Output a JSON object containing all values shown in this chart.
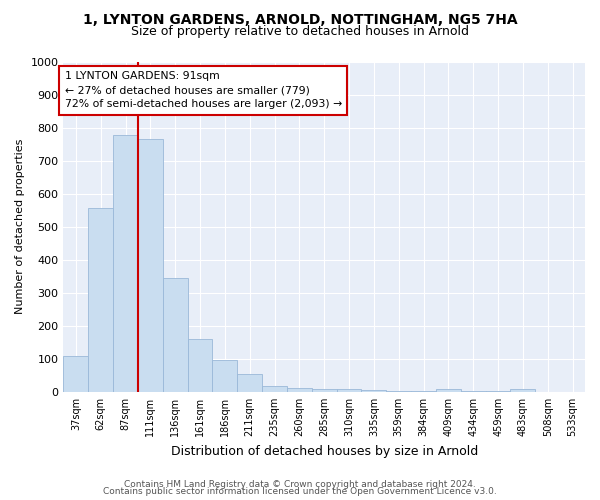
{
  "title_line1": "1, LYNTON GARDENS, ARNOLD, NOTTINGHAM, NG5 7HA",
  "title_line2": "Size of property relative to detached houses in Arnold",
  "xlabel": "Distribution of detached houses by size in Arnold",
  "ylabel": "Number of detached properties",
  "categories": [
    "37sqm",
    "62sqm",
    "87sqm",
    "111sqm",
    "136sqm",
    "161sqm",
    "186sqm",
    "211sqm",
    "235sqm",
    "260sqm",
    "285sqm",
    "310sqm",
    "335sqm",
    "359sqm",
    "384sqm",
    "409sqm",
    "434sqm",
    "459sqm",
    "483sqm",
    "508sqm",
    "533sqm"
  ],
  "values": [
    110,
    558,
    778,
    765,
    345,
    160,
    97,
    53,
    18,
    12,
    10,
    8,
    6,
    4,
    2,
    8,
    3,
    2,
    10,
    1,
    1
  ],
  "bar_color": "#c9ddf0",
  "bar_edge_color": "#9ab8d8",
  "property_line_index": 2,
  "property_line_color": "#cc0000",
  "annotation_text": "1 LYNTON GARDENS: 91sqm\n← 27% of detached houses are smaller (779)\n72% of semi-detached houses are larger (2,093) →",
  "annotation_box_facecolor": "#ffffff",
  "annotation_box_edgecolor": "#cc0000",
  "ylim": [
    0,
    1000
  ],
  "yticks": [
    0,
    100,
    200,
    300,
    400,
    500,
    600,
    700,
    800,
    900,
    1000
  ],
  "background_color": "#ffffff",
  "plot_bg_color": "#e8eef8",
  "grid_color": "#ffffff",
  "footer_line1": "Contains HM Land Registry data © Crown copyright and database right 2024.",
  "footer_line2": "Contains public sector information licensed under the Open Government Licence v3.0.",
  "title_fontsize": 10,
  "subtitle_fontsize": 9,
  "ylabel_fontsize": 8,
  "xlabel_fontsize": 9,
  "tick_fontsize": 7,
  "footer_fontsize": 6.5
}
